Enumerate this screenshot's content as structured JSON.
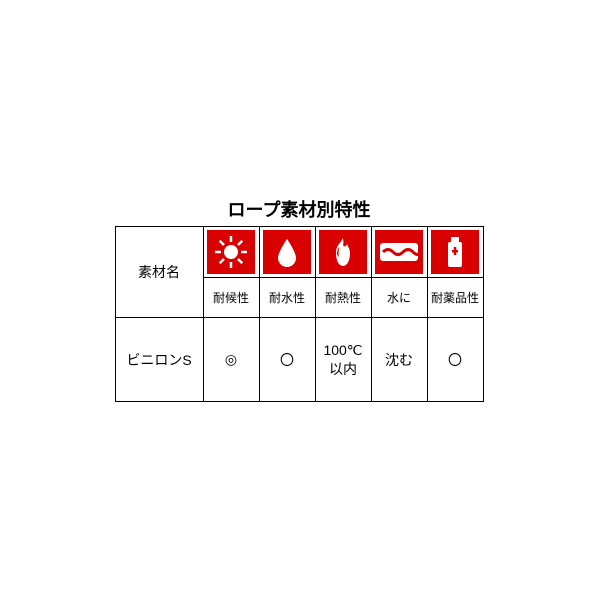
{
  "title": "ロープ素材別特性",
  "table": {
    "material_header": "素材名",
    "columns": [
      {
        "label": "耐候性",
        "icon": "sun"
      },
      {
        "label": "耐水性",
        "icon": "water"
      },
      {
        "label": "耐熱性",
        "icon": "fire"
      },
      {
        "label": "水に",
        "icon": "wave"
      },
      {
        "label": "耐薬品性",
        "icon": "bottle"
      }
    ],
    "rows": [
      {
        "material": "ビニロンS",
        "values": [
          "◎",
          "〇",
          "100℃\n以内",
          "沈む",
          "〇"
        ]
      }
    ],
    "colors": {
      "icon_bg": "#d80000",
      "icon_fg": "#ffffff",
      "border": "#000000",
      "text": "#000000"
    }
  }
}
